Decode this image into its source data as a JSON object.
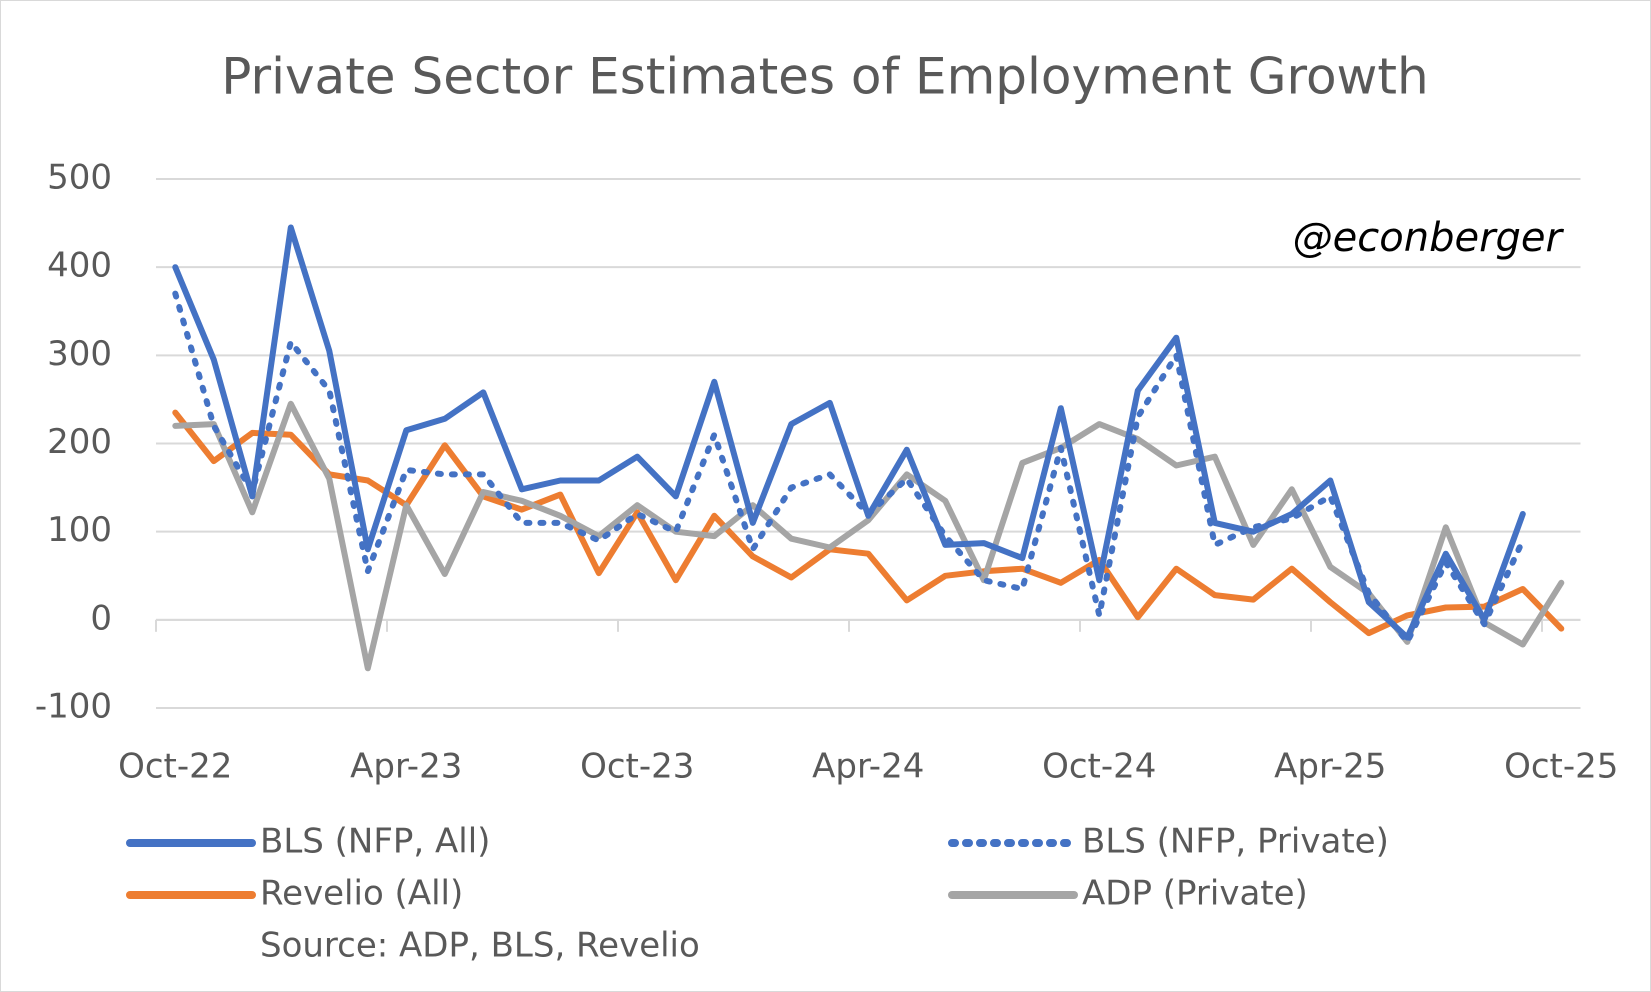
{
  "chart_data": {
    "type": "line",
    "title": "Private Sector Estimates of Employment Growth",
    "annotation": "@econberger",
    "source": "Source: ADP, BLS, Revelio",
    "categories": [
      "Oct-22",
      null,
      null,
      null,
      null,
      null,
      "Apr-23",
      null,
      null,
      null,
      null,
      null,
      "Oct-23",
      null,
      null,
      null,
      null,
      null,
      "Apr-24",
      null,
      null,
      null,
      null,
      null,
      "Oct-24",
      null,
      null,
      null,
      null,
      null,
      "Apr-25",
      null,
      null,
      null,
      null,
      null,
      "Oct-25"
    ],
    "ylim": [
      -100,
      500
    ],
    "yticks": [
      -100,
      0,
      100,
      200,
      300,
      400,
      500
    ],
    "grid": true,
    "series": [
      {
        "name": "BLS (NFP, All)",
        "color": "#4472c4",
        "style": "solid",
        "values": [
          400,
          295,
          140,
          445,
          305,
          80,
          215,
          228,
          258,
          148,
          158,
          158,
          185,
          140,
          270,
          110,
          222,
          246,
          118,
          193,
          85,
          87,
          70,
          240,
          45,
          260,
          320,
          110,
          100,
          120,
          158,
          20,
          -20,
          75,
          0,
          120,
          null
        ]
      },
      {
        "name": "BLS (NFP, Private)",
        "color": "#4472c4",
        "style": "dotted",
        "values": [
          370,
          220,
          145,
          315,
          260,
          55,
          170,
          165,
          165,
          110,
          110,
          90,
          120,
          100,
          210,
          80,
          150,
          165,
          120,
          160,
          95,
          45,
          35,
          195,
          5,
          230,
          300,
          85,
          105,
          115,
          140,
          30,
          -25,
          65,
          -5,
          90,
          null
        ]
      },
      {
        "name": "Revelio (All)",
        "color": "#ed7d31",
        "style": "solid",
        "values": [
          235,
          180,
          212,
          210,
          165,
          158,
          130,
          198,
          140,
          125,
          142,
          53,
          122,
          45,
          118,
          72,
          48,
          80,
          75,
          22,
          50,
          55,
          58,
          42,
          68,
          3,
          58,
          28,
          23,
          58,
          20,
          -15,
          5,
          14,
          15,
          35,
          -10
        ]
      },
      {
        "name": "ADP (Private)",
        "color": "#a5a5a5",
        "style": "solid",
        "values": [
          220,
          222,
          122,
          245,
          160,
          -55,
          130,
          52,
          145,
          135,
          118,
          95,
          130,
          100,
          95,
          130,
          92,
          82,
          113,
          165,
          135,
          45,
          178,
          195,
          222,
          205,
          175,
          185,
          85,
          148,
          60,
          30,
          -25,
          105,
          -3,
          -28,
          42
        ]
      }
    ]
  }
}
